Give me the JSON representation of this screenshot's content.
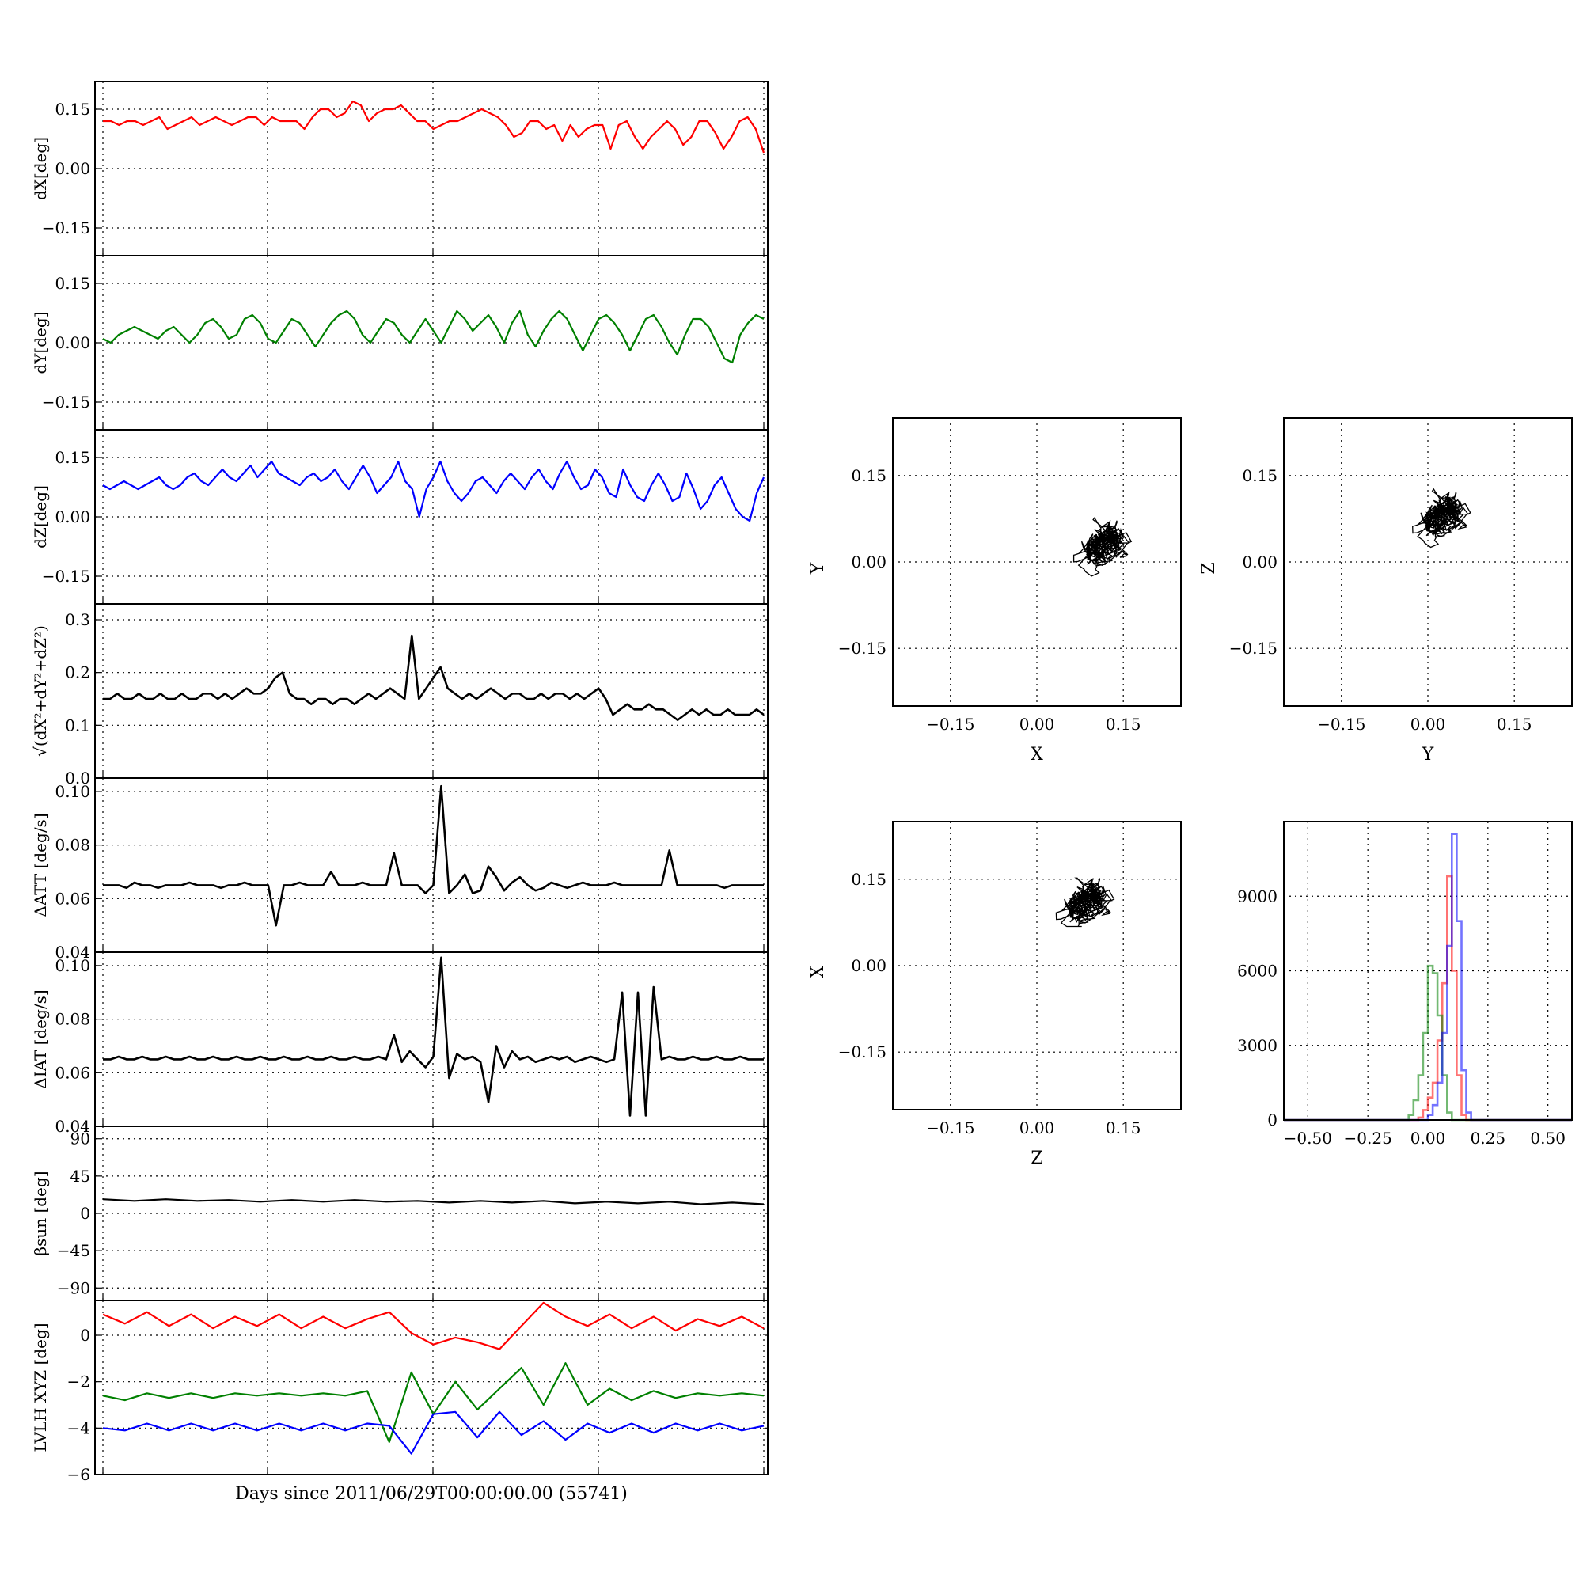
{
  "figure": {
    "xlabel": "Days since 2011/06/29T00:00:00.00 (55741)"
  },
  "chart_data": [
    {
      "id": "dX",
      "type": "line",
      "ylabel": "dX[deg]",
      "ylim": [
        -0.22,
        0.22
      ],
      "yticks": [
        -0.15,
        0.0,
        0.15
      ],
      "ytick_labels": [
        "−0.15",
        "0.00",
        "0.15"
      ],
      "series": [
        {
          "color": "#ff0000",
          "values": [
            0.12,
            0.12,
            0.11,
            0.12,
            0.12,
            0.11,
            0.12,
            0.13,
            0.1,
            0.11,
            0.12,
            0.13,
            0.11,
            0.12,
            0.13,
            0.12,
            0.11,
            0.12,
            0.13,
            0.13,
            0.11,
            0.13,
            0.12,
            0.12,
            0.12,
            0.1,
            0.13,
            0.15,
            0.15,
            0.13,
            0.14,
            0.17,
            0.16,
            0.12,
            0.14,
            0.15,
            0.15,
            0.16,
            0.14,
            0.12,
            0.12,
            0.1,
            0.11,
            0.12,
            0.12,
            0.13,
            0.14,
            0.15,
            0.14,
            0.13,
            0.11,
            0.08,
            0.09,
            0.12,
            0.12,
            0.1,
            0.11,
            0.07,
            0.11,
            0.08,
            0.1,
            0.11,
            0.11,
            0.05,
            0.11,
            0.12,
            0.08,
            0.05,
            0.08,
            0.1,
            0.12,
            0.1,
            0.06,
            0.08,
            0.12,
            0.12,
            0.09,
            0.05,
            0.08,
            0.12,
            0.13,
            0.1,
            0.04
          ]
        }
      ]
    },
    {
      "id": "dY",
      "type": "line",
      "ylabel": "dY[deg]",
      "ylim": [
        -0.22,
        0.22
      ],
      "yticks": [
        -0.15,
        0.0,
        0.15
      ],
      "ytick_labels": [
        "−0.15",
        "0.00",
        "0.15"
      ],
      "series": [
        {
          "color": "#008000",
          "values": [
            0.01,
            0.0,
            0.02,
            0.03,
            0.04,
            0.03,
            0.02,
            0.01,
            0.03,
            0.04,
            0.02,
            0.0,
            0.02,
            0.05,
            0.06,
            0.04,
            0.01,
            0.02,
            0.06,
            0.07,
            0.05,
            0.01,
            0.0,
            0.03,
            0.06,
            0.05,
            0.02,
            -0.01,
            0.02,
            0.05,
            0.07,
            0.08,
            0.06,
            0.02,
            0.0,
            0.03,
            0.06,
            0.05,
            0.02,
            0.0,
            0.03,
            0.06,
            0.03,
            0.0,
            0.04,
            0.08,
            0.06,
            0.03,
            0.05,
            0.07,
            0.04,
            0.0,
            0.05,
            0.08,
            0.02,
            -0.01,
            0.03,
            0.06,
            0.08,
            0.06,
            0.02,
            -0.02,
            0.02,
            0.06,
            0.07,
            0.05,
            0.02,
            -0.02,
            0.02,
            0.06,
            0.07,
            0.04,
            0.0,
            -0.03,
            0.02,
            0.06,
            0.06,
            0.04,
            0.0,
            -0.04,
            -0.05,
            0.02,
            0.05,
            0.07,
            0.06
          ]
        }
      ]
    },
    {
      "id": "dZ",
      "type": "line",
      "ylabel": "dZ[deg]",
      "ylim": [
        -0.22,
        0.22
      ],
      "yticks": [
        -0.15,
        0.0,
        0.15
      ],
      "ytick_labels": [
        "−0.15",
        "0.00",
        "0.15"
      ],
      "series": [
        {
          "color": "#0000ff",
          "values": [
            0.08,
            0.07,
            0.08,
            0.09,
            0.08,
            0.07,
            0.08,
            0.09,
            0.1,
            0.08,
            0.07,
            0.08,
            0.1,
            0.11,
            0.09,
            0.08,
            0.1,
            0.12,
            0.1,
            0.09,
            0.11,
            0.13,
            0.1,
            0.12,
            0.14,
            0.11,
            0.1,
            0.09,
            0.08,
            0.1,
            0.11,
            0.09,
            0.1,
            0.12,
            0.09,
            0.07,
            0.1,
            0.13,
            0.1,
            0.06,
            0.08,
            0.1,
            0.14,
            0.09,
            0.07,
            0.0,
            0.07,
            0.1,
            0.14,
            0.09,
            0.06,
            0.04,
            0.06,
            0.09,
            0.1,
            0.08,
            0.06,
            0.09,
            0.11,
            0.09,
            0.07,
            0.1,
            0.12,
            0.09,
            0.07,
            0.11,
            0.14,
            0.1,
            0.07,
            0.08,
            0.12,
            0.1,
            0.06,
            0.05,
            0.12,
            0.08,
            0.05,
            0.04,
            0.08,
            0.11,
            0.08,
            0.04,
            0.05,
            0.11,
            0.07,
            0.02,
            0.04,
            0.08,
            0.1,
            0.06,
            0.02,
            0.0,
            -0.01,
            0.06,
            0.1
          ]
        }
      ]
    },
    {
      "id": "mag",
      "type": "line",
      "ylabel": "√(dX²+dY²+dZ²)",
      "ylim": [
        0.0,
        0.33
      ],
      "yticks": [
        0.0,
        0.1,
        0.2,
        0.3
      ],
      "ytick_labels": [
        "0.0",
        "0.1",
        "0.2",
        "0.3"
      ],
      "series": [
        {
          "color": "#000000",
          "values": [
            0.15,
            0.15,
            0.16,
            0.15,
            0.15,
            0.16,
            0.15,
            0.15,
            0.16,
            0.15,
            0.15,
            0.16,
            0.15,
            0.15,
            0.16,
            0.16,
            0.15,
            0.16,
            0.15,
            0.16,
            0.17,
            0.16,
            0.16,
            0.17,
            0.19,
            0.2,
            0.16,
            0.15,
            0.15,
            0.14,
            0.15,
            0.15,
            0.14,
            0.15,
            0.15,
            0.14,
            0.15,
            0.16,
            0.15,
            0.16,
            0.17,
            0.16,
            0.15,
            0.27,
            0.15,
            0.17,
            0.19,
            0.21,
            0.17,
            0.16,
            0.15,
            0.16,
            0.15,
            0.16,
            0.17,
            0.16,
            0.15,
            0.16,
            0.16,
            0.15,
            0.15,
            0.16,
            0.15,
            0.16,
            0.16,
            0.15,
            0.16,
            0.15,
            0.16,
            0.17,
            0.15,
            0.12,
            0.13,
            0.14,
            0.13,
            0.13,
            0.14,
            0.13,
            0.13,
            0.12,
            0.11,
            0.12,
            0.13,
            0.12,
            0.13,
            0.12,
            0.12,
            0.13,
            0.12,
            0.12,
            0.12,
            0.13,
            0.12
          ]
        }
      ]
    },
    {
      "id": "datt",
      "type": "line",
      "ylabel": "ΔATT [deg/s]",
      "ylim": [
        0.04,
        0.105
      ],
      "yticks": [
        0.04,
        0.06,
        0.08,
        0.1
      ],
      "ytick_labels": [
        "0.04",
        "0.06",
        "0.08",
        "0.10"
      ],
      "series": [
        {
          "color": "#000000",
          "values": [
            0.065,
            0.065,
            0.065,
            0.064,
            0.066,
            0.065,
            0.065,
            0.064,
            0.065,
            0.065,
            0.065,
            0.066,
            0.065,
            0.065,
            0.065,
            0.064,
            0.065,
            0.065,
            0.066,
            0.065,
            0.065,
            0.065,
            0.05,
            0.065,
            0.065,
            0.066,
            0.065,
            0.065,
            0.065,
            0.07,
            0.065,
            0.065,
            0.065,
            0.066,
            0.065,
            0.065,
            0.065,
            0.077,
            0.065,
            0.065,
            0.065,
            0.062,
            0.065,
            0.102,
            0.062,
            0.065,
            0.069,
            0.062,
            0.063,
            0.072,
            0.068,
            0.063,
            0.066,
            0.068,
            0.065,
            0.063,
            0.064,
            0.066,
            0.065,
            0.064,
            0.065,
            0.066,
            0.065,
            0.065,
            0.065,
            0.066,
            0.065,
            0.065,
            0.065,
            0.065,
            0.065,
            0.065,
            0.078,
            0.065,
            0.065,
            0.065,
            0.065,
            0.065,
            0.065,
            0.064,
            0.065,
            0.065,
            0.065,
            0.065,
            0.065
          ]
        }
      ]
    },
    {
      "id": "diat",
      "type": "line",
      "ylabel": "ΔIAT [deg/s]",
      "ylim": [
        0.04,
        0.105
      ],
      "yticks": [
        0.04,
        0.06,
        0.08,
        0.1
      ],
      "ytick_labels": [
        "0.04",
        "0.06",
        "0.08",
        "0.10"
      ],
      "series": [
        {
          "color": "#000000",
          "values": [
            0.065,
            0.065,
            0.066,
            0.065,
            0.065,
            0.066,
            0.065,
            0.065,
            0.066,
            0.065,
            0.065,
            0.066,
            0.065,
            0.065,
            0.066,
            0.065,
            0.065,
            0.066,
            0.065,
            0.065,
            0.066,
            0.065,
            0.065,
            0.066,
            0.065,
            0.065,
            0.066,
            0.065,
            0.065,
            0.066,
            0.065,
            0.065,
            0.066,
            0.065,
            0.065,
            0.066,
            0.065,
            0.074,
            0.064,
            0.068,
            0.065,
            0.062,
            0.066,
            0.103,
            0.058,
            0.067,
            0.065,
            0.066,
            0.064,
            0.049,
            0.07,
            0.062,
            0.068,
            0.065,
            0.066,
            0.064,
            0.065,
            0.066,
            0.065,
            0.066,
            0.064,
            0.065,
            0.066,
            0.065,
            0.064,
            0.065,
            0.09,
            0.044,
            0.09,
            0.044,
            0.092,
            0.065,
            0.066,
            0.065,
            0.065,
            0.066,
            0.065,
            0.065,
            0.066,
            0.065,
            0.065,
            0.066,
            0.065,
            0.065,
            0.065
          ]
        }
      ]
    },
    {
      "id": "beta",
      "type": "line",
      "ylabel": "βsun [deg]",
      "ylim": [
        -105,
        105
      ],
      "yticks": [
        -90,
        -45,
        0,
        45,
        90
      ],
      "ytick_labels": [
        "−90",
        "−45",
        "0",
        "45",
        "90"
      ],
      "series": [
        {
          "color": "#000000",
          "values": [
            17,
            15,
            17,
            15,
            16,
            14,
            16,
            14,
            16,
            14,
            15,
            13,
            15,
            13,
            15,
            12,
            14,
            12,
            14,
            11,
            13,
            11
          ]
        }
      ]
    },
    {
      "id": "lvlh",
      "type": "line",
      "ylabel": "LVLH XYZ [deg]",
      "ylim": [
        -6,
        1.5
      ],
      "yticks": [
        -6,
        -4,
        -2,
        0
      ],
      "ytick_labels": [
        "−6",
        "−4",
        "−2",
        "0"
      ],
      "series": [
        {
          "color": "#ff0000",
          "values": [
            0.9,
            0.5,
            1.0,
            0.4,
            0.9,
            0.3,
            0.8,
            0.4,
            0.9,
            0.3,
            0.8,
            0.3,
            0.7,
            1.0,
            0.1,
            -0.4,
            -0.1,
            -0.3,
            -0.6,
            0.4,
            1.4,
            0.8,
            0.4,
            0.9,
            0.3,
            0.8,
            0.2,
            0.7,
            0.4,
            0.8,
            0.3
          ]
        },
        {
          "color": "#008000",
          "values": [
            -2.6,
            -2.8,
            -2.5,
            -2.7,
            -2.5,
            -2.7,
            -2.5,
            -2.6,
            -2.5,
            -2.6,
            -2.5,
            -2.6,
            -2.4,
            -4.6,
            -1.6,
            -3.4,
            -2.0,
            -3.2,
            -2.3,
            -1.4,
            -3.0,
            -1.2,
            -3.0,
            -2.3,
            -2.8,
            -2.4,
            -2.7,
            -2.5,
            -2.6,
            -2.5,
            -2.6
          ]
        },
        {
          "color": "#0000ff",
          "values": [
            -4.0,
            -4.1,
            -3.8,
            -4.1,
            -3.8,
            -4.1,
            -3.8,
            -4.1,
            -3.8,
            -4.1,
            -3.8,
            -4.1,
            -3.8,
            -3.9,
            -5.1,
            -3.4,
            -3.3,
            -4.4,
            -3.3,
            -4.3,
            -3.7,
            -4.5,
            -3.8,
            -4.2,
            -3.8,
            -4.2,
            -3.8,
            -4.1,
            -3.8,
            -4.1,
            -3.9
          ]
        }
      ]
    },
    {
      "id": "scatXY",
      "type": "scatter",
      "xlabel": "X",
      "ylabel": "Y",
      "xlim": [
        -0.25,
        0.25
      ],
      "ylim": [
        -0.25,
        0.25
      ],
      "ticks": [
        -0.15,
        0.0,
        0.15
      ],
      "tick_labels": [
        "−0.15",
        "0.00",
        "0.15"
      ],
      "center": [
        0.12,
        0.03
      ],
      "spread": [
        0.04,
        0.05
      ]
    },
    {
      "id": "scatYZ",
      "type": "scatter",
      "xlabel": "Y",
      "ylabel": "Z",
      "xlim": [
        -0.25,
        0.25
      ],
      "ylim": [
        -0.25,
        0.25
      ],
      "ticks": [
        -0.15,
        0.0,
        0.15
      ],
      "tick_labels": [
        "−0.15",
        "0.00",
        "0.15"
      ],
      "center": [
        0.03,
        0.08
      ],
      "spread": [
        0.06,
        0.04
      ]
    },
    {
      "id": "scatZX",
      "type": "scatter",
      "xlabel": "Z",
      "ylabel": "X",
      "xlim": [
        -0.25,
        0.25
      ],
      "ylim": [
        -0.25,
        0.25
      ],
      "ticks": [
        -0.15,
        0.0,
        0.15
      ],
      "tick_labels": [
        "−0.15",
        "0.00",
        "0.15"
      ],
      "center": [
        0.09,
        0.11
      ],
      "spread": [
        0.05,
        0.03
      ]
    },
    {
      "id": "hist",
      "type": "histogram",
      "xlim": [
        -0.6,
        0.6
      ],
      "ylim": [
        0,
        12000
      ],
      "xticks": [
        -0.5,
        -0.25,
        0.0,
        0.25,
        0.5
      ],
      "xtick_labels": [
        "−0.50",
        "−0.25",
        "0.00",
        "0.25",
        "0.50"
      ],
      "yticks": [
        0,
        3000,
        6000,
        9000
      ],
      "ytick_labels": [
        "0",
        "3000",
        "6000",
        "9000"
      ],
      "series": [
        {
          "color": "#ff0000",
          "bin_centers": [
            -0.03,
            -0.01,
            0.01,
            0.03,
            0.05,
            0.07,
            0.09,
            0.11,
            0.13,
            0.15
          ],
          "values": [
            100,
            400,
            900,
            1500,
            3200,
            5500,
            9800,
            6000,
            1800,
            200
          ]
        },
        {
          "color": "#008000",
          "bin_centers": [
            -0.07,
            -0.05,
            -0.03,
            -0.01,
            0.01,
            0.03,
            0.05,
            0.07,
            0.09
          ],
          "values": [
            200,
            800,
            1800,
            3500,
            6200,
            5900,
            4200,
            1800,
            300
          ]
        },
        {
          "color": "#0000ff",
          "bin_centers": [
            0.01,
            0.03,
            0.05,
            0.07,
            0.09,
            0.11,
            0.13,
            0.15,
            0.17
          ],
          "values": [
            200,
            600,
            1500,
            3500,
            7000,
            11500,
            8000,
            2000,
            300
          ]
        }
      ]
    }
  ]
}
